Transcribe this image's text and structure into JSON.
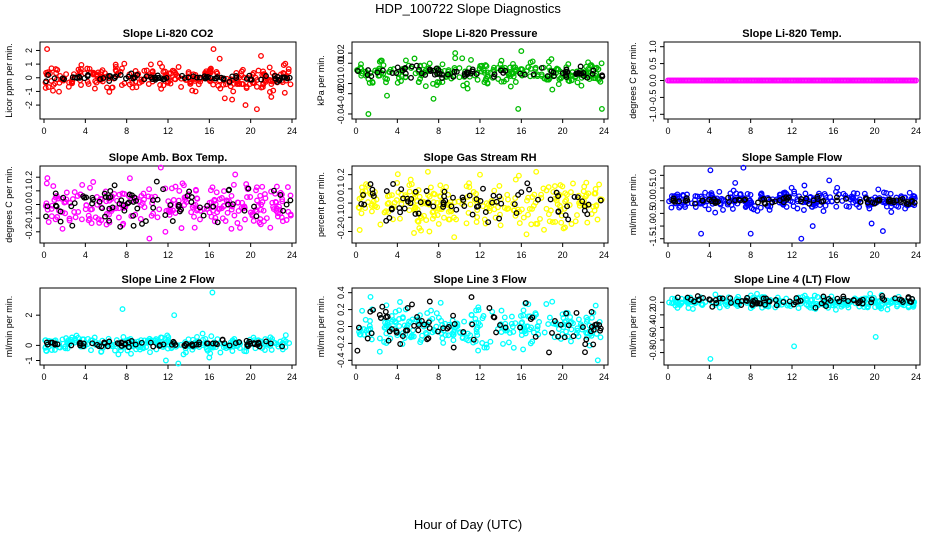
{
  "title": "HDP_100722  Slope Diagnostics",
  "xlabel": "Hour of Day (UTC)",
  "x_ticks": [
    "0",
    "4",
    "8",
    "12",
    "16",
    "20",
    "24"
  ],
  "chart_data": [
    {
      "type": "scatter",
      "title": "Slope Li-820 CO2",
      "ylabel": "Licor ppm per min.",
      "xlim": [
        0,
        24
      ],
      "ylim": [
        -2.8,
        2.4
      ],
      "y_ticks": [
        -2,
        -1,
        0,
        1,
        2
      ],
      "y_tick_labels": [
        "-2",
        "-1",
        "0",
        "1",
        "2"
      ],
      "series": [
        {
          "color": "#ff0000",
          "spread": 0.45,
          "center": 0.0,
          "outliers": [
            [
              0.3,
              2.1
            ],
            [
              16.4,
              2.1
            ],
            [
              17.5,
              -1.5
            ],
            [
              18.2,
              -1.6
            ],
            [
              19.5,
              -2.0
            ],
            [
              20.6,
              -2.3
            ],
            [
              22.0,
              -1.4
            ],
            [
              23.3,
              -1.1
            ],
            [
              17.0,
              1.4
            ],
            [
              21.0,
              1.6
            ]
          ]
        },
        {
          "color": "#000000",
          "spread": 0.12,
          "center": 0.0,
          "count": 80
        }
      ]
    },
    {
      "type": "scatter",
      "title": "Slope Li-820 Pressure",
      "ylabel": "kPa per min.",
      "xlim": [
        0,
        24
      ],
      "ylim": [
        -0.042,
        0.028
      ],
      "y_ticks": [
        -0.04,
        -0.02,
        -0.01,
        0.01,
        0.02
      ],
      "y_tick_labels": [
        "-0.04",
        "-0.02",
        "-0.01",
        "0.01",
        "0.02"
      ],
      "series": [
        {
          "color": "#00bb00",
          "spread": 0.006,
          "center": 0.0,
          "outliers": [
            [
              1.2,
              -0.04
            ],
            [
              15.7,
              -0.035
            ],
            [
              23.8,
              -0.035
            ],
            [
              3.0,
              -0.022
            ],
            [
              7.5,
              -0.025
            ],
            [
              10.8,
              -0.015
            ],
            [
              19.0,
              -0.016
            ],
            [
              16.0,
              0.022
            ],
            [
              9.6,
              0.02
            ]
          ]
        },
        {
          "color": "#000000",
          "spread": 0.003,
          "center": 0.001,
          "count": 75
        }
      ]
    },
    {
      "type": "scatter",
      "title": "Slope Li-820 Temp.",
      "ylabel": "degrees C per min.",
      "xlim": [
        0,
        24
      ],
      "ylim": [
        -1.05,
        1.05
      ],
      "y_ticks": [
        -1,
        -0.5,
        0,
        0.5,
        1
      ],
      "y_tick_labels": [
        "-1.0",
        "-0.5",
        "0.0",
        "0.5",
        "1.0"
      ],
      "series": [
        {
          "color": "#ff00ff",
          "spread": 0.0,
          "center": 0.0,
          "count": 160,
          "range": [
            0.0,
            24.0
          ]
        }
      ]
    },
    {
      "type": "scatter",
      "title": "Slope Amb. Box Temp.",
      "ylabel": "degrees C per min.",
      "xlim": [
        0,
        24
      ],
      "ylim": [
        -0.26,
        0.26
      ],
      "y_ticks": [
        -0.2,
        -0.1,
        0,
        0.1,
        0.2
      ],
      "y_tick_labels": [
        "-0.2",
        "-0.1",
        "0.0",
        "0.1",
        "0.2"
      ],
      "series": [
        {
          "color": "#ff00ff",
          "spread": 0.085,
          "center": 0.0,
          "outliers": [
            [
              10.2,
              -0.25
            ],
            [
              11.3,
              0.27
            ],
            [
              18.5,
              0.22
            ]
          ]
        },
        {
          "color": "#000000",
          "spread": 0.08,
          "center": 0.0,
          "count": 80
        }
      ]
    },
    {
      "type": "scatter",
      "title": "Slope Gas Stream RH",
      "ylabel": "percent per min.",
      "xlim": [
        0,
        24
      ],
      "ylim": [
        -0.26,
        0.24
      ],
      "y_ticks": [
        -0.2,
        -0.1,
        0,
        0.1,
        0.2
      ],
      "y_tick_labels": [
        "-0.2",
        "-0.1",
        "0.0",
        "0.1",
        "0.2"
      ],
      "series": [
        {
          "color": "#ffff00",
          "spread": 0.08,
          "center": 0.0,
          "outliers": [
            [
              9.5,
              -0.24
            ],
            [
              12.0,
              0.2
            ],
            [
              16.5,
              -0.22
            ]
          ]
        },
        {
          "color": "#000000",
          "spread": 0.07,
          "center": 0.0,
          "count": 80
        }
      ]
    },
    {
      "type": "scatter",
      "title": "Slope Sample Flow",
      "ylabel": "ml/min per min.",
      "xlim": [
        0,
        24
      ],
      "ylim": [
        -1.55,
        1.25
      ],
      "y_ticks": [
        -1.5,
        -1.0,
        -0.5,
        0,
        0.5,
        1.0
      ],
      "y_tick_labels": [
        "-1.5",
        "-1.0",
        "-0.5",
        "0.0",
        "0.5",
        "1.0"
      ],
      "series": [
        {
          "color": "#0000ff",
          "spread": 0.18,
          "center": 0.0,
          "outliers": [
            [
              3.2,
              -1.3
            ],
            [
              4.1,
              1.2
            ],
            [
              7.3,
              1.3
            ],
            [
              8.0,
              -1.3
            ],
            [
              12.9,
              -1.5
            ],
            [
              14.0,
              -1.0
            ],
            [
              15.6,
              0.8
            ],
            [
              19.7,
              -0.9
            ],
            [
              20.8,
              -1.2
            ],
            [
              6.5,
              0.7
            ],
            [
              13.2,
              0.6
            ]
          ]
        },
        {
          "color": "#000000",
          "spread": 0.08,
          "center": 0.0,
          "count": 80
        }
      ]
    },
    {
      "type": "scatter",
      "title": "Slope Line 2 Flow",
      "ylabel": "ml/min per min.",
      "xlim": [
        0,
        24
      ],
      "ylim": [
        -1.1,
        3.6
      ],
      "y_ticks": [
        -1,
        0,
        2
      ],
      "y_tick_labels": [
        "-1",
        "0",
        "2"
      ],
      "series": [
        {
          "color": "#00ffff",
          "spread": 0.25,
          "center": 0.1,
          "outliers": [
            [
              7.6,
              2.4
            ],
            [
              11.8,
              -1.0
            ],
            [
              12.6,
              2.0
            ],
            [
              13.5,
              -0.6
            ],
            [
              16.3,
              3.5
            ],
            [
              16.0,
              -0.8
            ],
            [
              13.0,
              -1.2
            ],
            [
              7.2,
              -0.6
            ]
          ]
        },
        {
          "color": "#000000",
          "spread": 0.1,
          "center": 0.1,
          "count": 80
        }
      ]
    },
    {
      "type": "scatter",
      "title": "Slope Line 3 Flow",
      "ylabel": "ml/min per min.",
      "xlim": [
        0,
        24
      ],
      "ylim": [
        -0.42,
        0.42
      ],
      "y_ticks": [
        -0.4,
        -0.2,
        0,
        0.2,
        0.4
      ],
      "y_tick_labels": [
        "-0.4",
        "-0.2",
        "0.0",
        "0.2",
        "0.4"
      ],
      "series": [
        {
          "color": "#00ffff",
          "spread": 0.13,
          "center": 0.0,
          "outliers": [
            [
              1.4,
              0.35
            ],
            [
              23.4,
              -0.4
            ]
          ]
        },
        {
          "color": "#000000",
          "spread": 0.14,
          "center": 0.0,
          "count": 80
        }
      ]
    },
    {
      "type": "scatter",
      "title": "Slope Line 4 (LT) Flow",
      "ylabel": "ml/min per min.",
      "xlim": [
        0,
        24
      ],
      "ylim": [
        -0.95,
        0.18
      ],
      "y_ticks": [
        -0.8,
        -0.6,
        -0.4,
        -0.2,
        0
      ],
      "y_tick_labels": [
        "-0.8",
        "-0.6",
        "-0.4",
        "-0.2",
        "0.0"
      ],
      "series": [
        {
          "color": "#00ffff",
          "spread": 0.05,
          "center": 0.0,
          "outliers": [
            [
              4.1,
              -0.9
            ],
            [
              12.2,
              -0.7
            ],
            [
              20.1,
              -0.55
            ]
          ]
        },
        {
          "color": "#000000",
          "spread": 0.04,
          "center": 0.02,
          "count": 80
        }
      ]
    }
  ]
}
